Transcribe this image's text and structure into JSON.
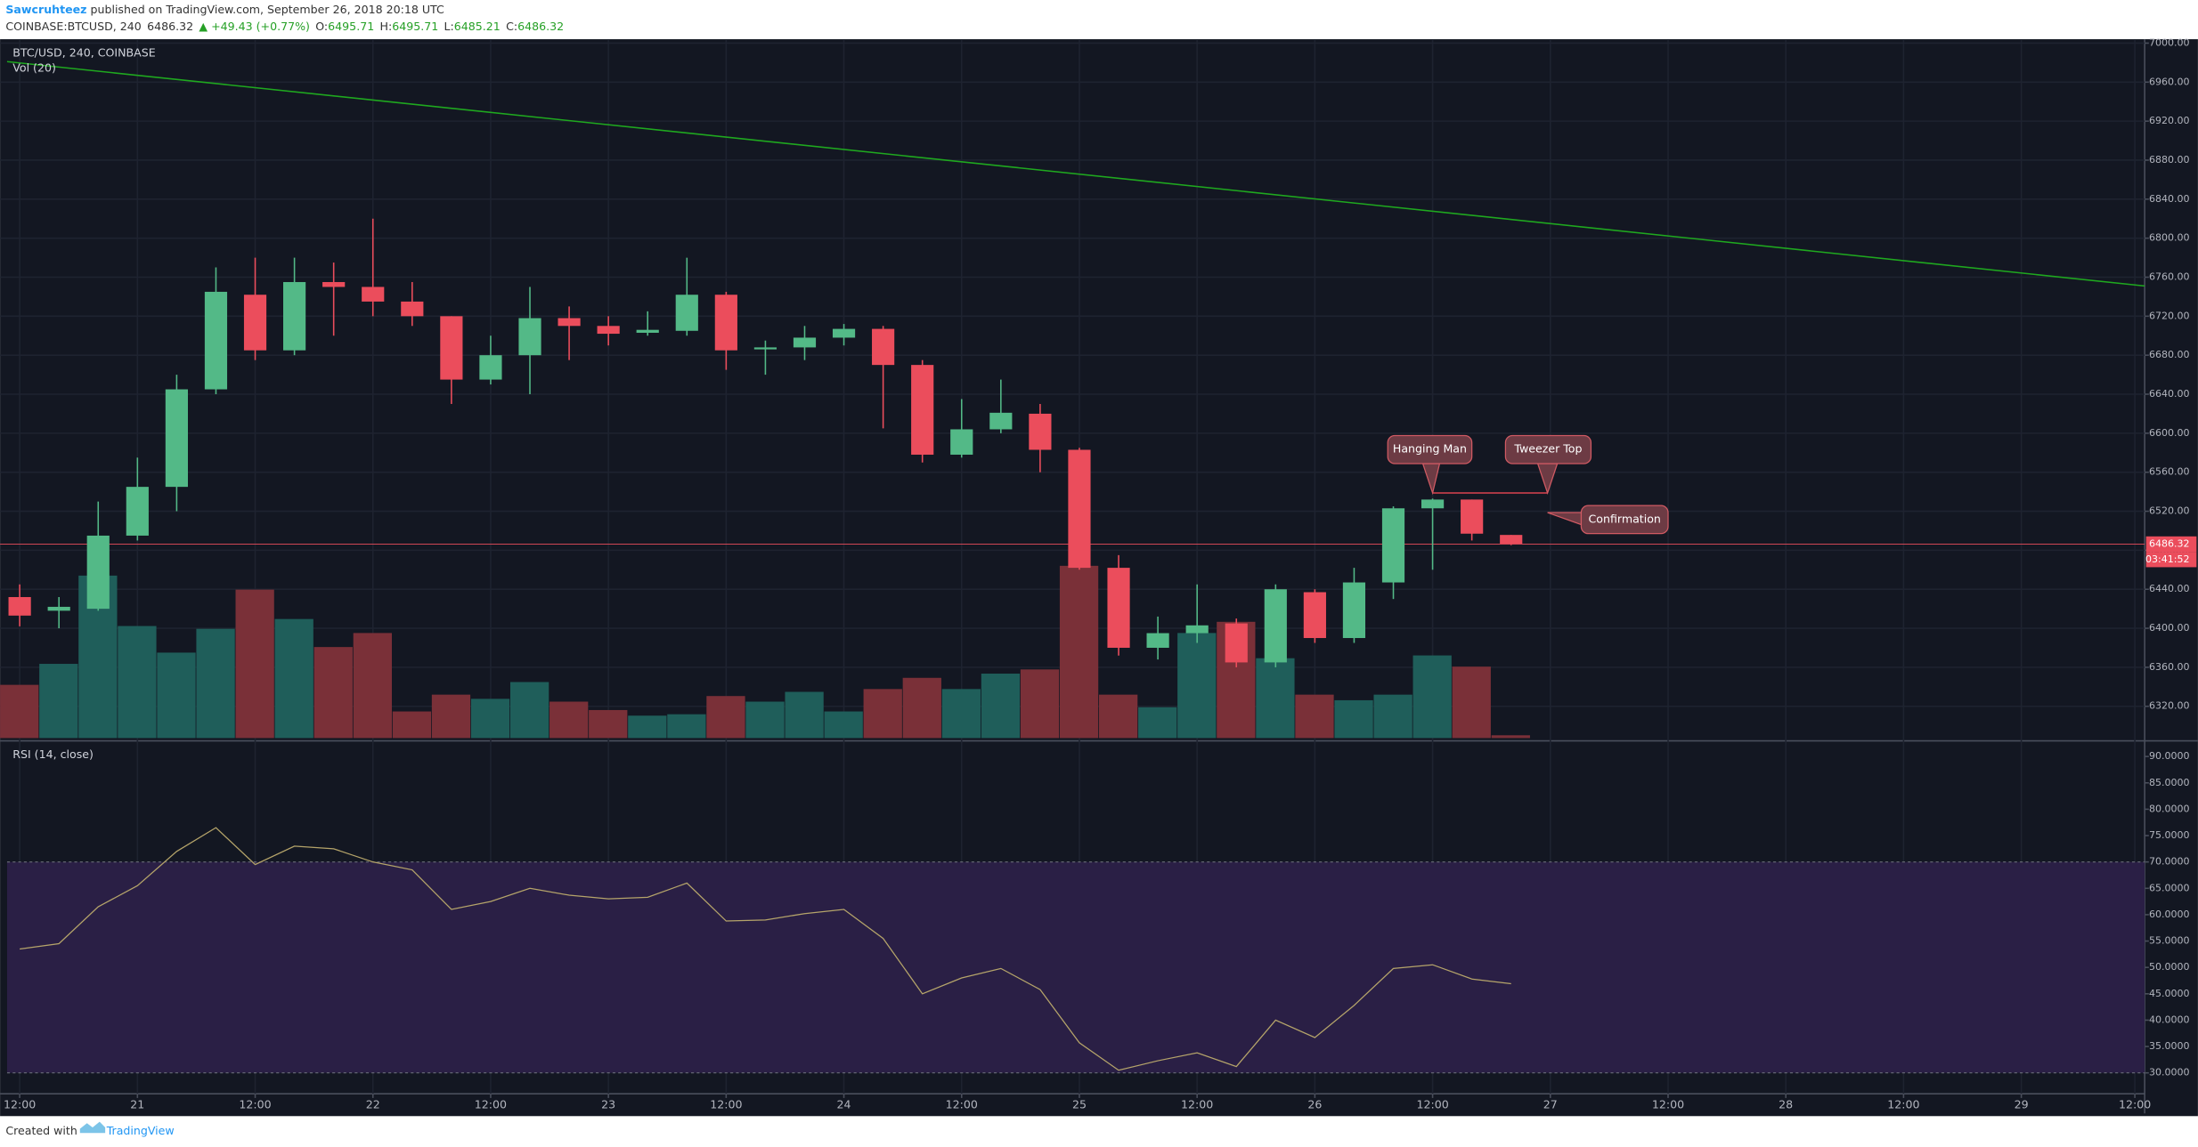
{
  "header": {
    "author": "Sawcruhteez",
    "published": " published on TradingView.com, September 26, 2018 20:18 UTC",
    "symbol": "COINBASE:BTCUSD, 240",
    "last": "6486.32",
    "change": "▲ +49.43 (+0.77%)",
    "ohlc": [
      {
        "k": "O:",
        "v": "6495.71"
      },
      {
        "k": "H:",
        "v": "6495.71"
      },
      {
        "k": "L:",
        "v": "6485.21"
      },
      {
        "k": "C:",
        "v": "6486.32"
      }
    ]
  },
  "chart_data": [
    {
      "type": "candlestick",
      "title": "BTC/USD, 240, COINBASE",
      "up_color": "#53b987",
      "down_color": "#eb4d5c",
      "open": [
        6432,
        6418,
        6420,
        6495,
        6545,
        6645,
        6742,
        6685,
        6755,
        6750,
        6735,
        6720,
        6655,
        6680,
        6718,
        6710,
        6703,
        6705,
        6742,
        6686,
        6688,
        6698,
        6707,
        6670,
        6578,
        6604,
        6620,
        6583,
        6462,
        6380,
        6395,
        6405,
        6365,
        6437,
        6390,
        6447,
        6523,
        6532,
        6495.71
      ],
      "high": [
        6445,
        6432,
        6530,
        6575,
        6660,
        6770,
        6780,
        6780,
        6775,
        6820,
        6755,
        6720,
        6700,
        6750,
        6730,
        6720,
        6725,
        6780,
        6745,
        6695,
        6710,
        6712,
        6710,
        6675,
        6635,
        6655,
        6630,
        6585,
        6475,
        6412,
        6445,
        6410,
        6445,
        6440,
        6462,
        6525,
        6533,
        6532,
        6495.71
      ],
      "low": [
        6402,
        6400,
        6418,
        6490,
        6520,
        6640,
        6675,
        6680,
        6700,
        6720,
        6710,
        6630,
        6650,
        6640,
        6675,
        6690,
        6700,
        6700,
        6665,
        6660,
        6675,
        6690,
        6605,
        6570,
        6575,
        6600,
        6560,
        6460,
        6372,
        6368,
        6385,
        6360,
        6360,
        6385,
        6385,
        6430,
        6460,
        6490,
        6485.21
      ],
      "close": [
        6413,
        6422,
        6495,
        6545,
        6645,
        6745,
        6685,
        6755,
        6750,
        6735,
        6720,
        6655,
        6680,
        6718,
        6710,
        6702,
        6706,
        6742,
        6685,
        6688,
        6698,
        6707,
        6670,
        6578,
        6604,
        6621,
        6583,
        6462,
        6380,
        6395,
        6403,
        6365,
        6440,
        6390,
        6447,
        6523,
        6532,
        6497,
        6486.32
      ],
      "ylim": [
        6286,
        7004
      ],
      "yticks": [
        {
          "value": 6320,
          "label": "6320.00"
        },
        {
          "value": 6360,
          "label": "6360.00"
        },
        {
          "value": 6400,
          "label": "6400.00"
        },
        {
          "value": 6440,
          "label": "6440.00"
        },
        {
          "value": 6480,
          "label": "6480.00"
        },
        {
          "value": 6520,
          "label": "6520.00"
        },
        {
          "value": 6560,
          "label": "6560.00"
        },
        {
          "value": 6600,
          "label": "6600.00"
        },
        {
          "value": 6640,
          "label": "6640.00"
        },
        {
          "value": 6680,
          "label": "6680.00"
        },
        {
          "value": 6720,
          "label": "6720.00"
        },
        {
          "value": 6760,
          "label": "6760.00"
        },
        {
          "value": 6800,
          "label": "6800.00"
        },
        {
          "value": 6840,
          "label": "6840.00"
        },
        {
          "value": 6880,
          "label": "6880.00"
        },
        {
          "value": 6920,
          "label": "6920.00"
        },
        {
          "value": 6960,
          "label": "6960.00"
        },
        {
          "value": 7000,
          "label": "7000.00"
        }
      ],
      "x_labels": [
        "12:00",
        "21",
        "12:00",
        "22",
        "12:00",
        "23",
        "12:00",
        "24",
        "12:00",
        "25",
        "12:00",
        "26",
        "12:00",
        "27",
        "12:00",
        "28",
        "12:00",
        "29",
        "12:00"
      ],
      "trendline": {
        "color": "#1fa81f",
        "start": 6981,
        "end": 6751
      },
      "last_price": 6486.32,
      "countdown": "03:41:52",
      "annotations": [
        "Hanging Man",
        "Tweezer Top",
        "Confirmation"
      ]
    },
    {
      "type": "bar",
      "title": "Vol (20)",
      "up_color": "#1f5e5a",
      "down_color": "#7a3038",
      "values": [
        760,
        1060,
        2320,
        1600,
        1220,
        1560,
        2120,
        1700,
        1300,
        1500,
        380,
        620,
        560,
        800,
        520,
        400,
        320,
        340,
        600,
        520,
        660,
        380,
        700,
        860,
        700,
        920,
        980,
        2460,
        620,
        440,
        1500,
        1660,
        1140,
        620,
        540,
        620,
        1180,
        1020,
        40
      ]
    },
    {
      "type": "line",
      "title": "RSI (14, close)",
      "color": "#b5a46a",
      "band": [
        30,
        70
      ],
      "band_color": "#2a1f45",
      "values": [
        53.5,
        54.5,
        61.5,
        65.5,
        72,
        76.5,
        69.5,
        73,
        72.5,
        70,
        68.5,
        61,
        62.5,
        65,
        63.7,
        63,
        63.3,
        66,
        58.8,
        59,
        60.2,
        61,
        55.5,
        45,
        48,
        49.8,
        45.8,
        35.7,
        30.5,
        32.3,
        33.8,
        31.2,
        40,
        36.7,
        42.8,
        49.8,
        50.5,
        47.8,
        46.9
      ],
      "ylim": [
        26.3,
        92.7
      ],
      "yticks": [
        {
          "value": 30,
          "label": "30.0000"
        },
        {
          "value": 35,
          "label": "35.0000"
        },
        {
          "value": 40,
          "label": "40.0000"
        },
        {
          "value": 45,
          "label": "45.0000"
        },
        {
          "value": 50,
          "label": "50.0000"
        },
        {
          "value": 55,
          "label": "55.0000"
        },
        {
          "value": 60,
          "label": "60.0000"
        },
        {
          "value": 65,
          "label": "65.0000"
        },
        {
          "value": 70,
          "label": "70.0000"
        },
        {
          "value": 75,
          "label": "75.0000"
        },
        {
          "value": 80,
          "label": "80.0000"
        },
        {
          "value": 85,
          "label": "85.0000"
        },
        {
          "value": 90,
          "label": "90.0000"
        }
      ]
    }
  ],
  "footer": {
    "created": "Created with",
    "brand": "TradingView"
  }
}
